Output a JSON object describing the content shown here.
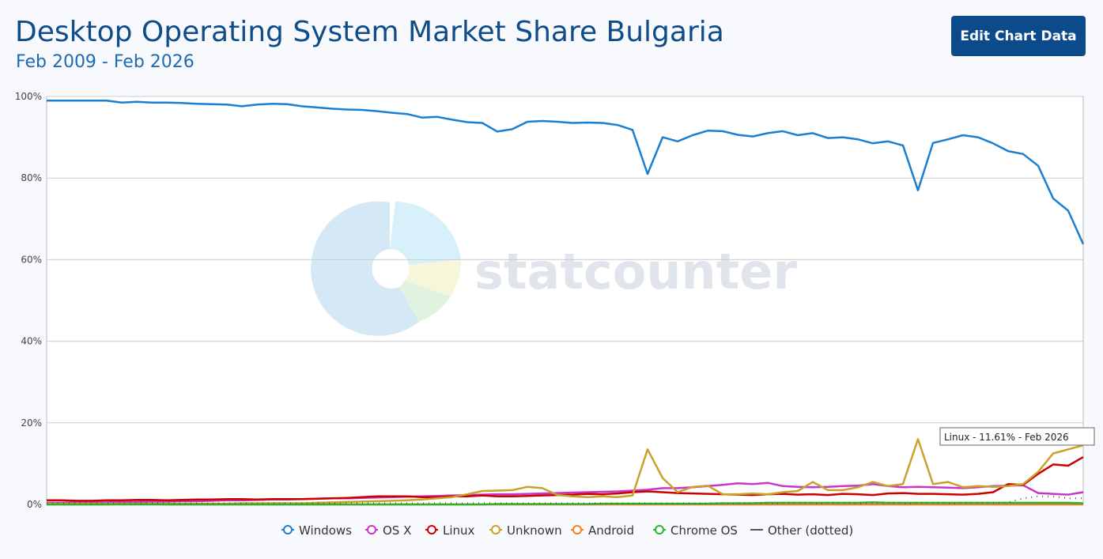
{
  "button": "Edit Chart Data",
  "chart_data": {
    "type": "line",
    "title": "Desktop Operating System Market Share Bulgaria",
    "subtitle": "Feb 2009 - Feb 2026",
    "watermark": "statcounter",
    "tooltip": "Linux - 11.61% - Feb 2026",
    "ylim": [
      0,
      100
    ],
    "yticks": [
      {
        "value": 0,
        "label": "0%"
      },
      {
        "value": 20,
        "label": "20%"
      },
      {
        "value": 40,
        "label": "40%"
      },
      {
        "value": 60,
        "label": "60%"
      },
      {
        "value": 80,
        "label": "80%"
      },
      {
        "value": 100,
        "label": "100%"
      }
    ],
    "grid": true,
    "legend": "bottom",
    "series": [
      {
        "name": "Windows",
        "color": "#1b7fd1",
        "values": [
          99,
          99,
          99,
          99,
          99,
          98.5,
          98.7,
          98.5,
          98.5,
          98.4,
          98.2,
          98.1,
          98,
          97.6,
          98,
          98.2,
          98.1,
          97.6,
          97.3,
          97,
          96.8,
          96.7,
          96.4,
          96,
          95.7,
          94.8,
          95,
          94.3,
          93.7,
          93.5,
          91.4,
          92,
          93.8,
          94,
          93.8,
          93.5,
          93.6,
          93.5,
          93,
          91.8,
          81,
          90,
          89,
          90.5,
          91.6,
          91.5,
          90.6,
          90.2,
          91,
          91.5,
          90.5,
          91,
          89.8,
          90,
          89.5,
          88.5,
          89,
          88,
          77,
          88.6,
          89.5,
          90.5,
          90,
          88.5,
          86.6,
          85.9,
          83,
          75,
          72,
          63.8
        ]
      },
      {
        "name": "OS X",
        "color": "#c737c7",
        "values": [
          0.4,
          0.4,
          0.5,
          0.5,
          0.5,
          0.6,
          0.6,
          0.7,
          0.7,
          0.8,
          0.8,
          0.9,
          1,
          1,
          1.1,
          1.2,
          1.2,
          1.3,
          1.4,
          1.5,
          1.5,
          1.6,
          1.7,
          1.8,
          1.9,
          2,
          2.1,
          2.2,
          2.3,
          2.4,
          2.5,
          2.5,
          2.6,
          2.7,
          2.8,
          2.9,
          3,
          3.1,
          3.2,
          3.4,
          3.6,
          4,
          4,
          4.2,
          4.5,
          4.8,
          5.2,
          5,
          5.3,
          4.5,
          4.3,
          4.2,
          4.3,
          4.5,
          4.6,
          5,
          4.5,
          4.2,
          4.3,
          4.2,
          4.1,
          4,
          4.2,
          4.5,
          4.6,
          4.7,
          2.8,
          2.6,
          2.4,
          3
        ]
      },
      {
        "name": "Linux",
        "color": "#cc0000",
        "values": [
          1,
          1,
          0.9,
          0.9,
          1,
          1,
          1.1,
          1.1,
          1,
          1.1,
          1.2,
          1.2,
          1.3,
          1.3,
          1.2,
          1.3,
          1.3,
          1.3,
          1.4,
          1.5,
          1.6,
          1.8,
          2,
          2,
          2,
          1.8,
          1.8,
          2,
          2,
          2.2,
          2,
          2,
          2.1,
          2.2,
          2.3,
          2.4,
          2.6,
          2.5,
          2.7,
          3,
          3.2,
          3,
          2.8,
          2.7,
          2.6,
          2.5,
          2.4,
          2.3,
          2.5,
          2.6,
          2.4,
          2.5,
          2.3,
          2.6,
          2.5,
          2.3,
          2.7,
          2.8,
          2.6,
          2.6,
          2.5,
          2.4,
          2.6,
          3,
          5,
          4.8,
          7.5,
          9.8,
          9.5,
          11.61
        ]
      },
      {
        "name": "Unknown",
        "color": "#c9a22c",
        "values": [
          0.2,
          0.2,
          0.2,
          0.2,
          0.2,
          0.2,
          0.2,
          0.2,
          0.2,
          0.2,
          0.2,
          0.2,
          0.2,
          0.3,
          0.3,
          0.3,
          0.3,
          0.3,
          0.4,
          0.5,
          0.6,
          0.7,
          0.8,
          0.9,
          1,
          1.2,
          1.5,
          1.8,
          2.5,
          3.3,
          3.4,
          3.5,
          4.3,
          4,
          2.3,
          2,
          1.8,
          2,
          1.8,
          2.2,
          13.5,
          6.5,
          3,
          4.3,
          4.6,
          2.5,
          2.5,
          2.7,
          2.5,
          3,
          3.3,
          5.5,
          3.5,
          3.5,
          4.2,
          5.5,
          4.5,
          5,
          16,
          5,
          5.5,
          4.2,
          4.5,
          4.3,
          4.5,
          5,
          8,
          12.5,
          13.5,
          14.5
        ]
      },
      {
        "name": "Android",
        "color": "#f47e20",
        "values": [
          0,
          0,
          0,
          0,
          0,
          0.1,
          0.1,
          0.1,
          0,
          0,
          0,
          0,
          0,
          0,
          0,
          0,
          0,
          0,
          0,
          0,
          0,
          0,
          0,
          0,
          0,
          0,
          0,
          0,
          0,
          0,
          0,
          0,
          0,
          0,
          0,
          0,
          0,
          0,
          0,
          0,
          0,
          0,
          0,
          0,
          0,
          0,
          0,
          0,
          0,
          0,
          0,
          0,
          0,
          0,
          0,
          0,
          0,
          0,
          0,
          0,
          0,
          0,
          0,
          0,
          0,
          0,
          0,
          0,
          0,
          0
        ]
      },
      {
        "name": "Chrome OS",
        "color": "#2cb52c",
        "values": [
          0,
          0,
          0,
          0,
          0,
          0,
          0,
          0,
          0,
          0,
          0,
          0,
          0,
          0,
          0,
          0,
          0,
          0,
          0,
          0,
          0,
          0,
          0,
          0,
          0,
          0,
          0,
          0,
          0,
          0,
          0.1,
          0.1,
          0.1,
          0.1,
          0.1,
          0.1,
          0.1,
          0.2,
          0.2,
          0.2,
          0.2,
          0.2,
          0.2,
          0.2,
          0.2,
          0.3,
          0.3,
          0.3,
          0.4,
          0.4,
          0.4,
          0.4,
          0.4,
          0.4,
          0.4,
          0.5,
          0.4,
          0.4,
          0.4,
          0.4,
          0.4,
          0.4,
          0.4,
          0.4,
          0.4,
          0.4,
          0.4,
          0.4,
          0.4,
          0.3
        ]
      },
      {
        "name": "Other (dotted)",
        "color": "#555555",
        "dotted": true,
        "values": [
          0.3,
          0.3,
          0.3,
          0.3,
          0.3,
          0.3,
          0.3,
          0.3,
          0.3,
          0.3,
          0.3,
          0.3,
          0.3,
          0.3,
          0.3,
          0.3,
          0.3,
          0.3,
          0.3,
          0.3,
          0.3,
          0.3,
          0.3,
          0.3,
          0.3,
          0.3,
          0.3,
          0.3,
          0.3,
          0.3,
          0.3,
          0.3,
          0.3,
          0.3,
          0.3,
          0.3,
          0.3,
          0.3,
          0.3,
          0.3,
          0.3,
          0.3,
          0.3,
          0.3,
          0.3,
          0.3,
          0.3,
          0.3,
          0.3,
          0.3,
          0.3,
          0.3,
          0.3,
          0.3,
          0.3,
          0.3,
          0.3,
          0.3,
          0.3,
          0.3,
          0.3,
          0.3,
          0.3,
          0.3,
          0.5,
          1.5,
          2,
          2,
          1.5,
          1.5
        ]
      }
    ]
  }
}
